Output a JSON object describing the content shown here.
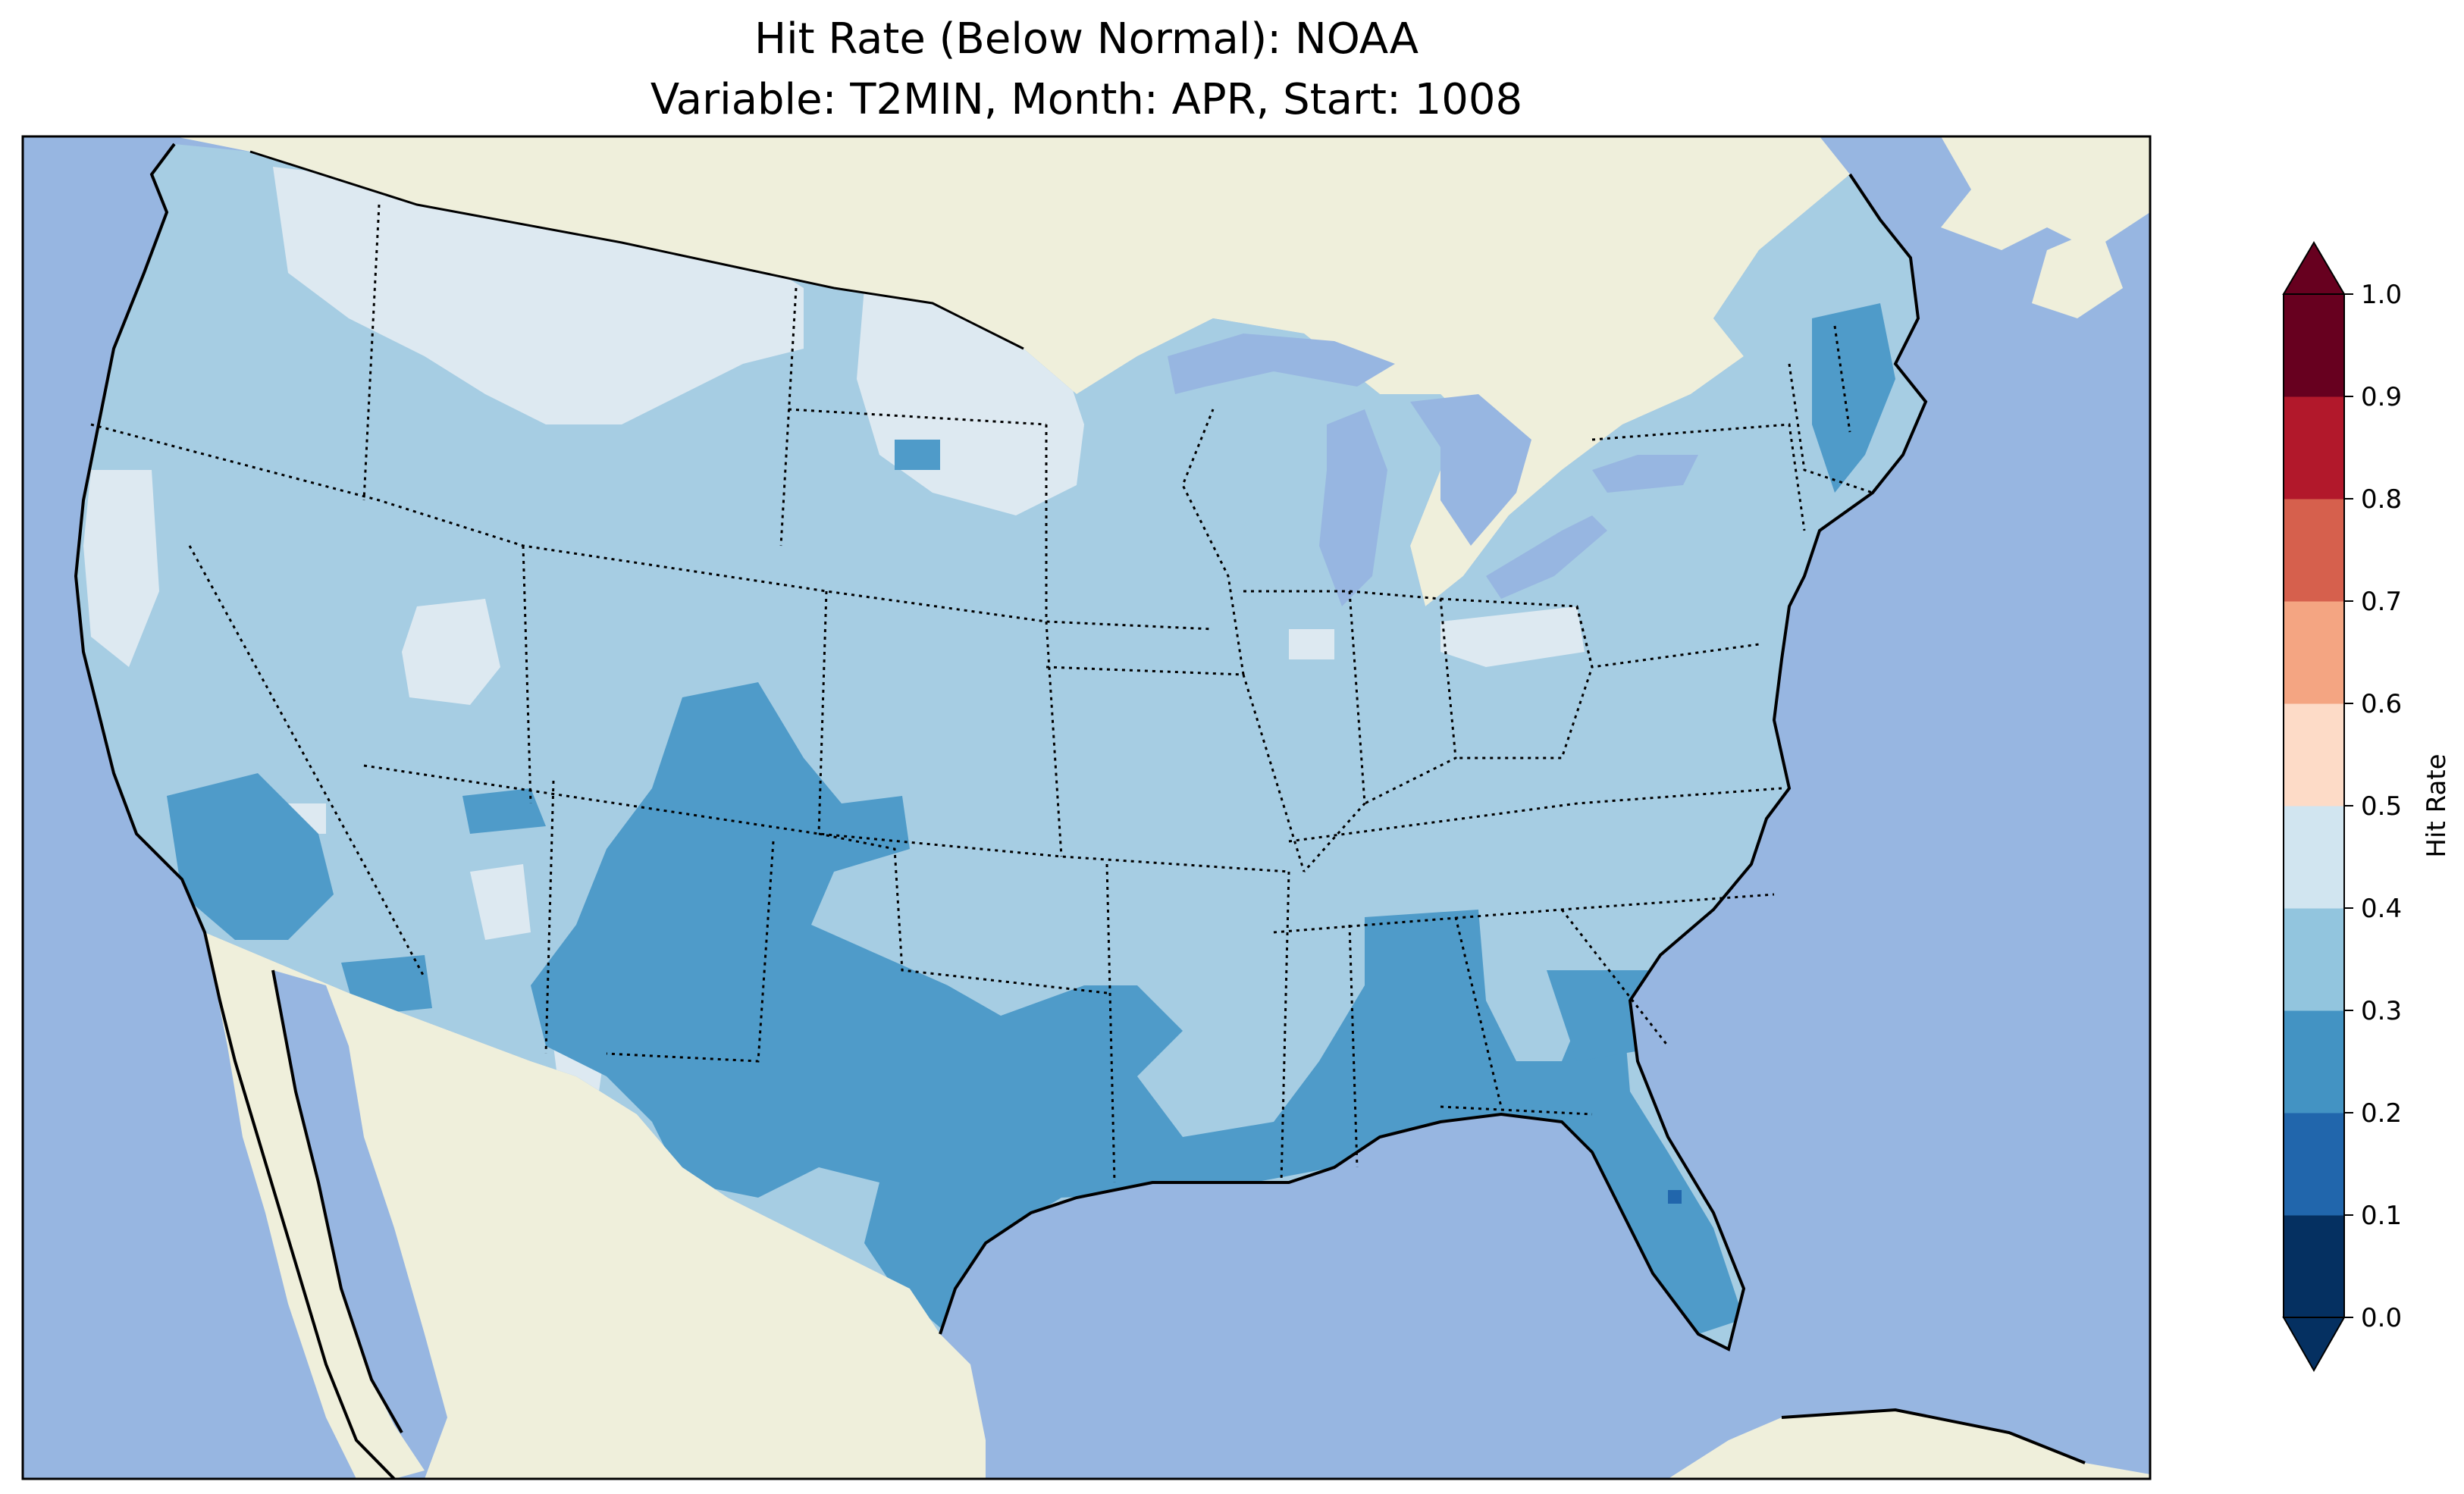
{
  "title": {
    "line1": "Hit Rate (Below Normal): NOAA",
    "line2": "Variable: T2MIN, Month: APR, Start: 1008"
  },
  "colorbar": {
    "label": "Hit Rate",
    "ticks": [
      "0.0",
      "0.1",
      "0.2",
      "0.3",
      "0.4",
      "0.5",
      "0.6",
      "0.7",
      "0.8",
      "0.9",
      "1.0"
    ],
    "colors": [
      "#053061",
      "#2166ac",
      "#4393c3",
      "#92c5de",
      "#d1e5f0",
      "#fddbc7",
      "#f4a582",
      "#d6604d",
      "#b2182b",
      "#67001f"
    ],
    "extend": "both"
  },
  "map": {
    "ocean_color": "#97b6e1",
    "land_color": "#efefdb",
    "colors_used": {
      "0.1-0.2": "#2166ac",
      "0.2-0.3": "#4f9bc9",
      "0.3-0.4": "#a6cde3",
      "0.4-0.5": "#dde9f1"
    }
  }
}
